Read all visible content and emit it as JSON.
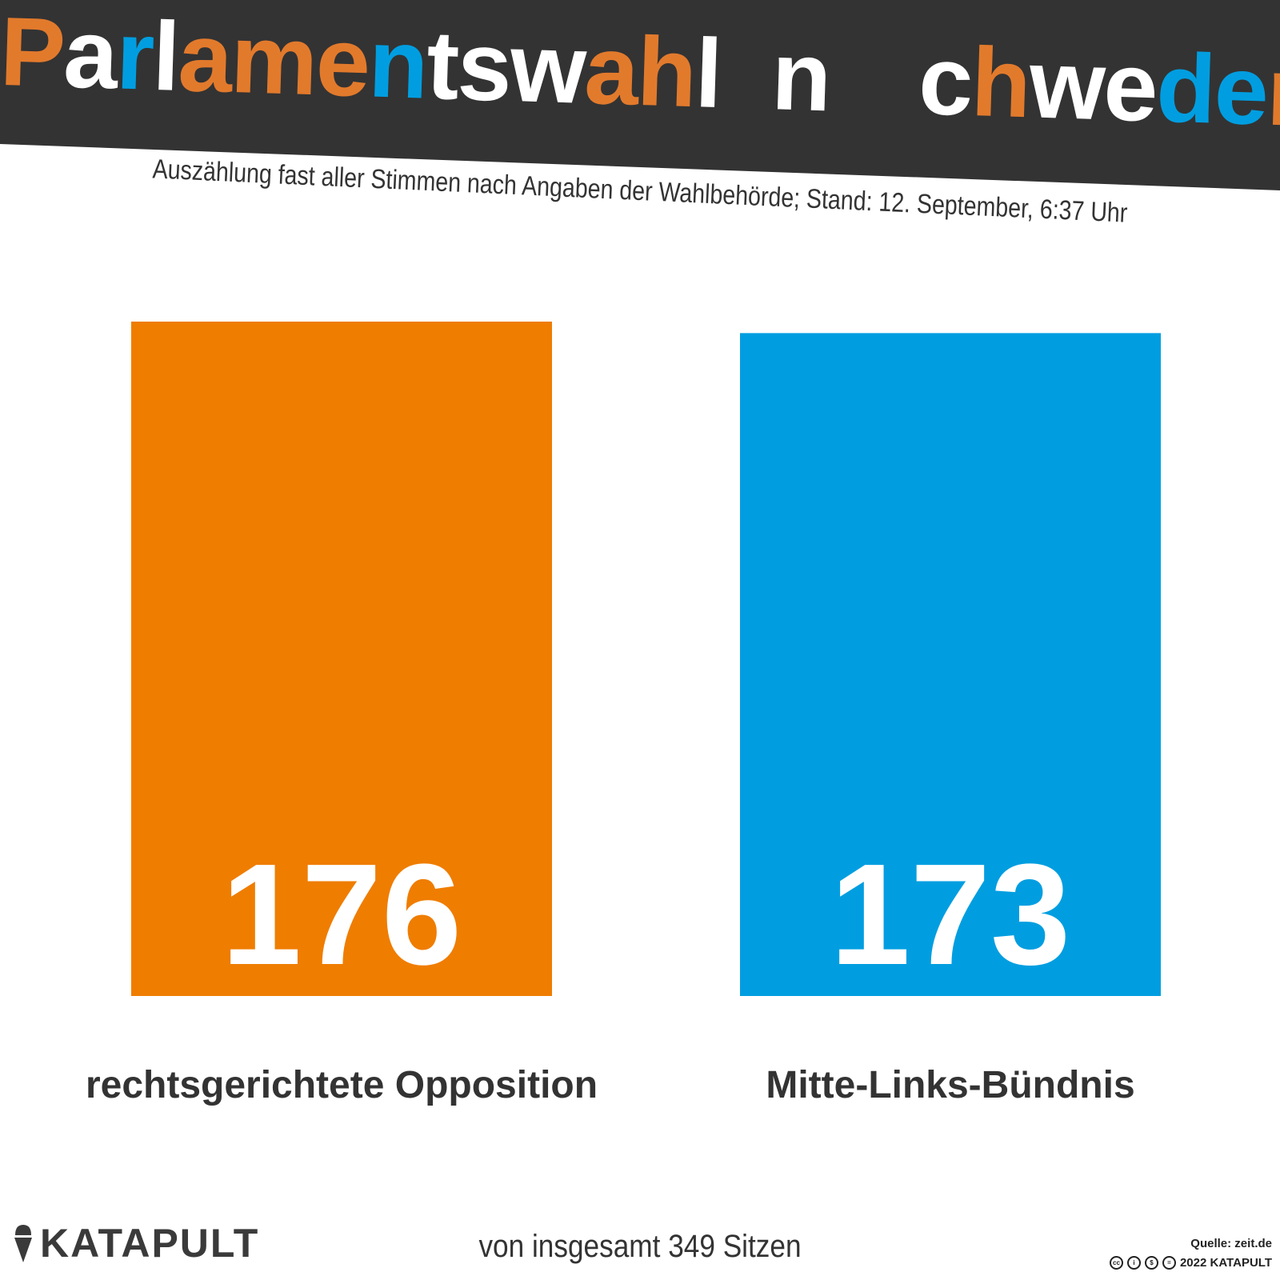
{
  "title": "Parlamentswahl in Schweden",
  "subtitle": "Auszählung fast aller Stimmen nach Angaben der Wahlbehörde; Stand: 12. September, 6:37 Uhr",
  "colors": {
    "header_bg": "#333333",
    "orange": "#ef7d00",
    "orange_letters": "#e27a2c",
    "blue": "#009ee0",
    "white": "#ffffff",
    "text": "#333333"
  },
  "title_letter_colors": [
    "orange",
    "white",
    "blue",
    "white",
    "orange",
    "orange",
    "orange",
    "blue",
    "white",
    "white",
    "white",
    "orange",
    "orange",
    "white",
    "blue",
    "space",
    "white",
    "white",
    "space",
    "white",
    "orange",
    "white",
    "white",
    "blue",
    "blue",
    "orange"
  ],
  "chart_data": {
    "type": "bar",
    "title": "Parlamentswahl in Schweden",
    "subtitle": "Auszählung fast aller Stimmen nach Angaben der Wahlbehörde; Stand: 12. September, 6:37 Uhr",
    "categories": [
      "rechtsgerichtete Opposition",
      "Mitte-Links-Bündnis"
    ],
    "values": [
      176,
      173
    ],
    "value_labels": [
      "176",
      "173"
    ],
    "bar_colors": [
      "#ef7d00",
      "#009ee0"
    ],
    "xlabel": "",
    "ylabel": "",
    "ylim": [
      0,
      176
    ],
    "grid": false,
    "axes_visible": false,
    "note": "von insgesamt 349 Sitzen"
  },
  "footer": {
    "logo_text": "KATAPULT",
    "logo_icon": "ice-cream-cone-icon",
    "source": "Quelle: zeit.de",
    "license_icons": [
      "cc-icon",
      "by-icon",
      "nc-icon",
      "nd-icon"
    ],
    "license_badges": [
      "cc",
      "i",
      "$",
      "="
    ],
    "copyright": "2022 KATAPULT"
  }
}
